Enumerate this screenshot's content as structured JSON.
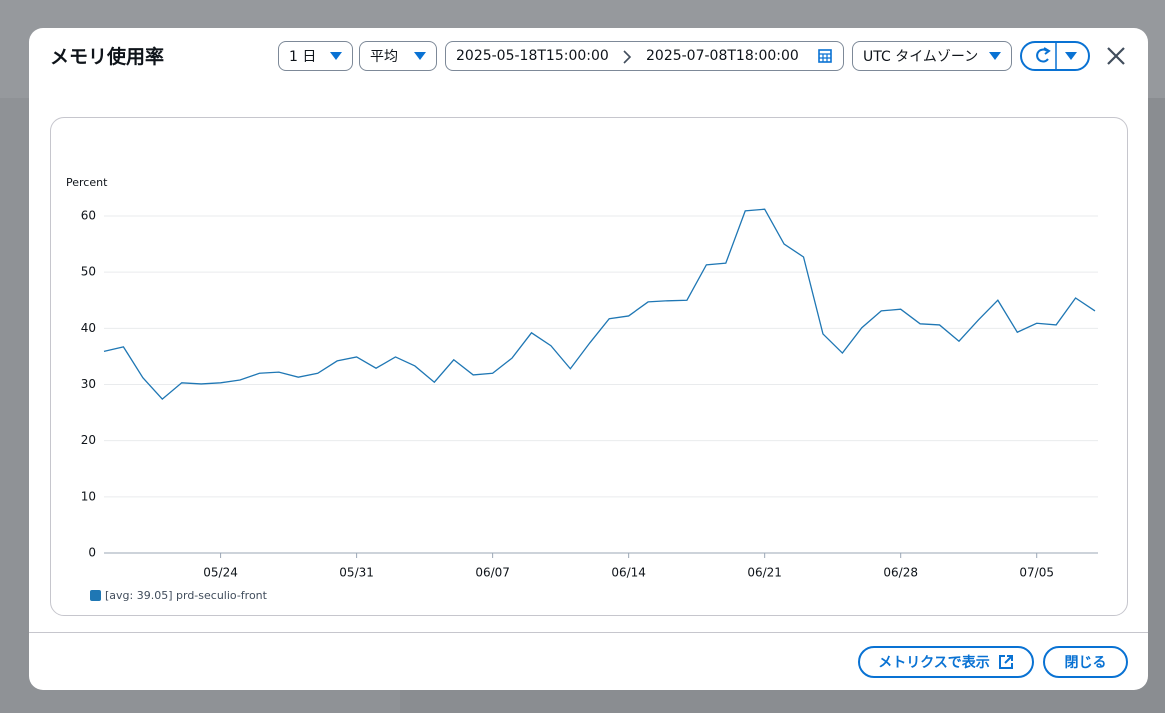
{
  "header": {
    "title": "メモリ使用率",
    "period": "1 日",
    "statistic": "平均",
    "start": "2025-05-18T15:00:00",
    "end": "2025-07-08T18:00:00",
    "timezone": "UTC タイムゾーン"
  },
  "footer": {
    "view_in_metrics": "メトリクスで表示",
    "close": "閉じる"
  },
  "chart_data": {
    "type": "line",
    "y_label": "Percent",
    "categories": [
      null,
      null,
      null,
      null,
      null,
      null,
      "05/24",
      null,
      null,
      null,
      null,
      null,
      null,
      "05/31",
      null,
      null,
      null,
      null,
      null,
      null,
      "06/07",
      null,
      null,
      null,
      null,
      null,
      null,
      "06/14",
      null,
      null,
      null,
      null,
      null,
      null,
      "06/21",
      null,
      null,
      null,
      null,
      null,
      null,
      "06/28",
      null,
      null,
      null,
      null,
      null,
      null,
      "07/05",
      null,
      null,
      null
    ],
    "series": [
      {
        "name": "[avg: 39.05] prd-seculio-front",
        "color": "#1f77b4",
        "values": [
          35.9,
          36.7,
          31.2,
          27.4,
          30.3,
          30.1,
          30.3,
          30.8,
          32.0,
          32.2,
          31.3,
          32.0,
          34.2,
          34.9,
          32.9,
          34.9,
          33.3,
          30.4,
          34.4,
          31.7,
          32.0,
          34.7,
          39.2,
          36.9,
          32.8,
          37.4,
          41.7,
          42.2,
          44.7,
          44.9,
          45.0,
          51.3,
          51.6,
          60.9,
          61.2,
          55.0,
          52.7,
          39.0,
          35.6,
          40.1,
          43.1,
          43.4,
          40.8,
          40.6,
          37.7,
          41.5,
          45.0,
          39.3,
          40.9,
          40.6,
          45.4,
          43.1
        ]
      }
    ],
    "ylim": [
      0,
      64
    ],
    "yticks": [
      0,
      10,
      20,
      30,
      40,
      50,
      60
    ],
    "grid": true
  }
}
